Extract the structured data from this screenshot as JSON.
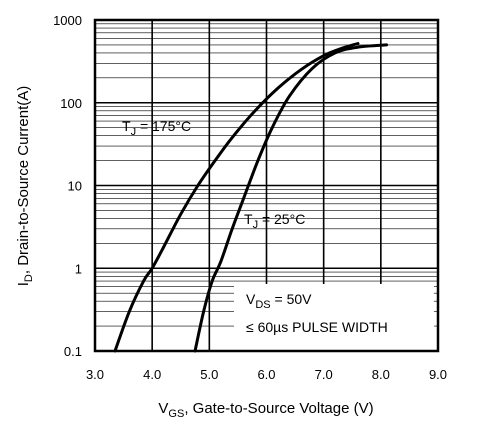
{
  "chart_data": {
    "type": "line",
    "xlabel_main": "V",
    "xlabel_sub": "GS",
    "xlabel_rest": ", Gate-to-Source Voltage (V)",
    "ylabel_main": "I",
    "ylabel_sub": "D",
    "ylabel_rest": ", Drain-to-Source Current(A)",
    "x_ticks": [
      "3.0",
      "4.0",
      "5.0",
      "6.0",
      "7.0",
      "8.0",
      "9.0"
    ],
    "y_ticks": [
      "0.1",
      "1",
      "10",
      "100",
      "1000"
    ],
    "xlim": [
      3.0,
      9.0
    ],
    "ylim": [
      0.1,
      1000
    ],
    "yscale": "log",
    "grid": true,
    "series": [
      {
        "label_main": "T",
        "label_sub": "J",
        "label_rest": " = 175°C",
        "x": [
          3.35,
          3.6,
          3.85,
          4.0,
          4.2,
          4.5,
          4.8,
          5.1,
          5.4,
          5.8,
          6.2,
          6.6,
          7.0,
          7.3,
          7.6
        ],
        "y": [
          0.1,
          0.3,
          0.7,
          1.0,
          1.8,
          4.5,
          10,
          20,
          38,
          80,
          150,
          250,
          370,
          450,
          520
        ]
      },
      {
        "label_main": "T",
        "label_sub": "J",
        "label_rest": " = 25°C",
        "x": [
          4.75,
          4.9,
          5.05,
          5.2,
          5.4,
          5.6,
          5.85,
          6.1,
          6.4,
          6.8,
          7.2,
          7.6,
          8.1
        ],
        "y": [
          0.1,
          0.3,
          0.7,
          1.2,
          3,
          7,
          20,
          50,
          120,
          260,
          400,
          470,
          500
        ]
      }
    ],
    "annotation_line1_main": "V",
    "annotation_line1_sub": "DS",
    "annotation_line1_rest": " = 50V",
    "annotation_line2": "≤ 60µs PULSE WIDTH"
  }
}
